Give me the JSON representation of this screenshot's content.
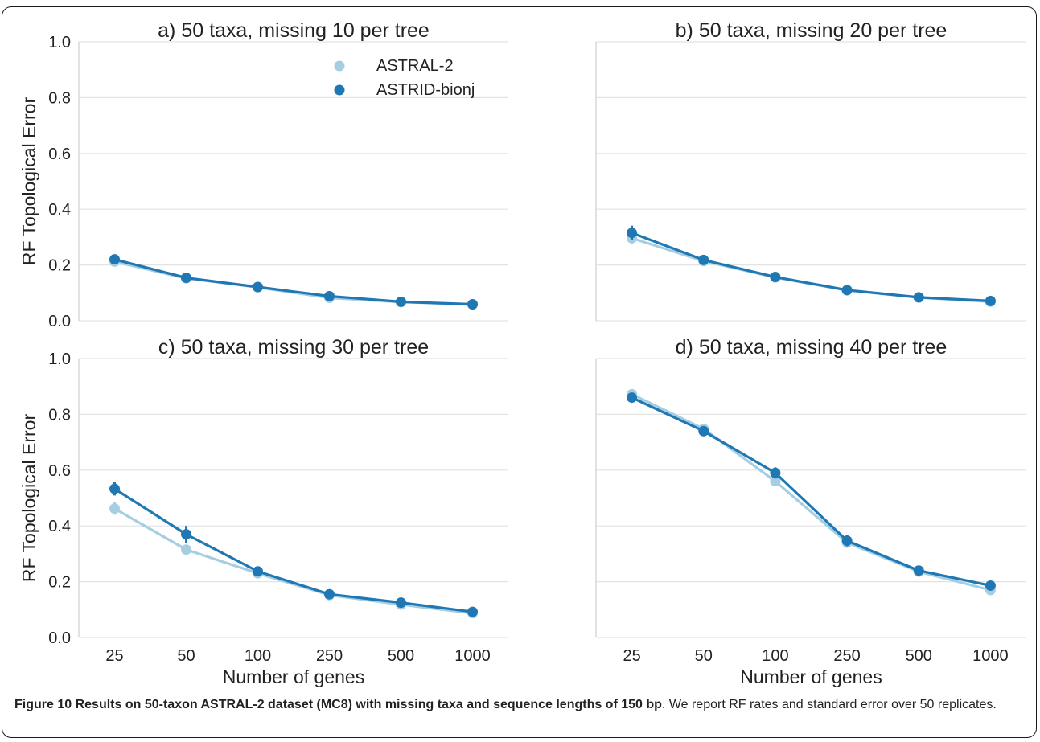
{
  "caption": {
    "label": "Figure 10",
    "bold_text": "Results on 50-taxon ASTRAL-2 dataset (MC8) with missing taxa and sequence lengths of 150 bp",
    "rest_text": ". We report RF rates and standard error over 50 replicates."
  },
  "colors": {
    "astral": "#a6cee3",
    "astrid": "#1f78b4",
    "grid": "#e3e3e3",
    "text": "#222222"
  },
  "chart_data": [
    {
      "type": "line",
      "title": "a) 50 taxa, missing 10 per tree",
      "categories": [
        "25",
        "50",
        "100",
        "250",
        "500",
        "1000"
      ],
      "ylabel": "RF Topological Error",
      "xlabel": "",
      "ylim": [
        0,
        1
      ],
      "yticks": [
        "0.0",
        "0.2",
        "0.4",
        "0.6",
        "0.8",
        "1.0"
      ],
      "legend": {
        "placement": "top-right",
        "entries": [
          "ASTRAL-2",
          "ASTRID-bionj"
        ]
      },
      "series": [
        {
          "name": "ASTRAL-2",
          "values": [
            0.212,
            0.152,
            0.12,
            0.082,
            0.067,
            0.058
          ],
          "err": [
            0.012,
            0.006,
            0.005,
            0.004,
            0.003,
            0.003
          ]
        },
        {
          "name": "ASTRID-bionj",
          "values": [
            0.22,
            0.154,
            0.121,
            0.088,
            0.068,
            0.059
          ],
          "err": [
            0.014,
            0.007,
            0.005,
            0.004,
            0.003,
            0.003
          ]
        }
      ]
    },
    {
      "type": "line",
      "title": "b) 50 taxa, missing 20 per tree",
      "categories": [
        "25",
        "50",
        "100",
        "250",
        "500",
        "1000"
      ],
      "ylabel": "",
      "xlabel": "",
      "ylim": [
        0,
        1
      ],
      "yticks": [],
      "series": [
        {
          "name": "ASTRAL-2",
          "values": [
            0.296,
            0.214,
            0.155,
            0.109,
            0.083,
            0.068
          ],
          "err": [
            0.02,
            0.012,
            0.007,
            0.005,
            0.004,
            0.004
          ]
        },
        {
          "name": "ASTRID-bionj",
          "values": [
            0.315,
            0.218,
            0.157,
            0.11,
            0.084,
            0.071
          ],
          "err": [
            0.026,
            0.014,
            0.007,
            0.005,
            0.004,
            0.004
          ]
        }
      ]
    },
    {
      "type": "line",
      "title": "c) 50 taxa, missing 30 per tree",
      "categories": [
        "25",
        "50",
        "100",
        "250",
        "500",
        "1000"
      ],
      "ylabel": "RF Topological Error",
      "xlabel": "Number of genes",
      "ylim": [
        0,
        1
      ],
      "yticks": [
        "0.0",
        "0.2",
        "0.4",
        "0.6",
        "0.8",
        "1.0"
      ],
      "series": [
        {
          "name": "ASTRAL-2",
          "values": [
            0.462,
            0.315,
            0.23,
            0.152,
            0.118,
            0.087
          ],
          "err": [
            0.022,
            0.018,
            0.01,
            0.006,
            0.005,
            0.004
          ]
        },
        {
          "name": "ASTRID-bionj",
          "values": [
            0.533,
            0.37,
            0.237,
            0.155,
            0.125,
            0.092
          ],
          "err": [
            0.024,
            0.03,
            0.012,
            0.006,
            0.005,
            0.005
          ]
        }
      ]
    },
    {
      "type": "line",
      "title": "d) 50 taxa, missing 40 per tree",
      "categories": [
        "25",
        "50",
        "100",
        "250",
        "500",
        "1000"
      ],
      "ylabel": "",
      "xlabel": "Number of genes",
      "ylim": [
        0,
        1
      ],
      "yticks": [],
      "series": [
        {
          "name": "ASTRAL-2",
          "values": [
            0.872,
            0.748,
            0.56,
            0.34,
            0.236,
            0.17
          ],
          "err": [
            0.008,
            0.01,
            0.018,
            0.018,
            0.01,
            0.009
          ]
        },
        {
          "name": "ASTRID-bionj",
          "values": [
            0.86,
            0.74,
            0.59,
            0.347,
            0.24,
            0.186
          ],
          "err": [
            0.009,
            0.014,
            0.02,
            0.02,
            0.012,
            0.01
          ]
        }
      ]
    }
  ]
}
